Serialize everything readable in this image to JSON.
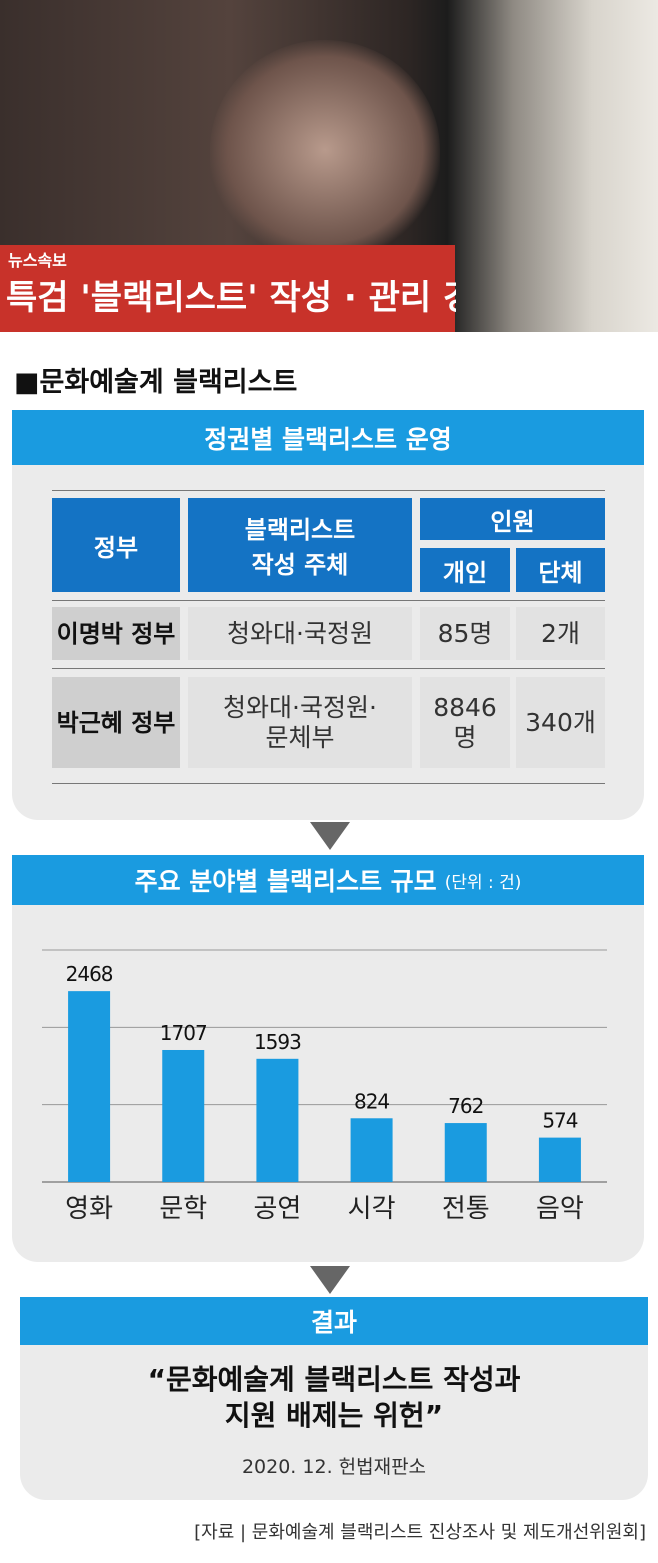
{
  "photo": {
    "badge": "뉴스속보",
    "ticker": "특검 '블랙리스트' 작성 · 관리 경위 등 조"
  },
  "header": {
    "title": "■문화예술계 블랙리스트"
  },
  "table": {
    "title": "정권별 블랙리스트 운영",
    "columns": {
      "government": "정부",
      "author": [
        "블랙리스트",
        "작성 주체"
      ],
      "people": "인원",
      "individual": "개인",
      "group": "단체"
    },
    "rows": [
      [
        "이명박 정부",
        [
          "청와대·국정원"
        ],
        [
          "85명"
        ],
        "2개"
      ],
      [
        "박근혜 정부",
        [
          "청와대·국정원·",
          "문체부"
        ],
        [
          "8846",
          "명"
        ],
        "340개"
      ]
    ]
  },
  "chart_data": {
    "type": "bar",
    "title": "주요 분야별 블랙리스트 규모",
    "subtitle": "(단위 : 건)",
    "categories": [
      "영화",
      "문학",
      "공연",
      "시각",
      "전통",
      "음악"
    ],
    "values": [
      2468,
      1707,
      1593,
      824,
      762,
      574
    ],
    "color": "#1a9be0",
    "ylim": [
      0,
      3000
    ],
    "yticks": [
      0,
      1000,
      2000,
      3000
    ],
    "grid": true
  },
  "result": {
    "title": "결과",
    "quote": [
      "“문화예술계 블랙리스트 작성과",
      "지원 배제는 위헌”"
    ],
    "date": "2020. 12. 헌법재판소"
  },
  "source": "[자료 | 문화예술계 블랙리스트 진상조사 및 제도개선위원회]"
}
